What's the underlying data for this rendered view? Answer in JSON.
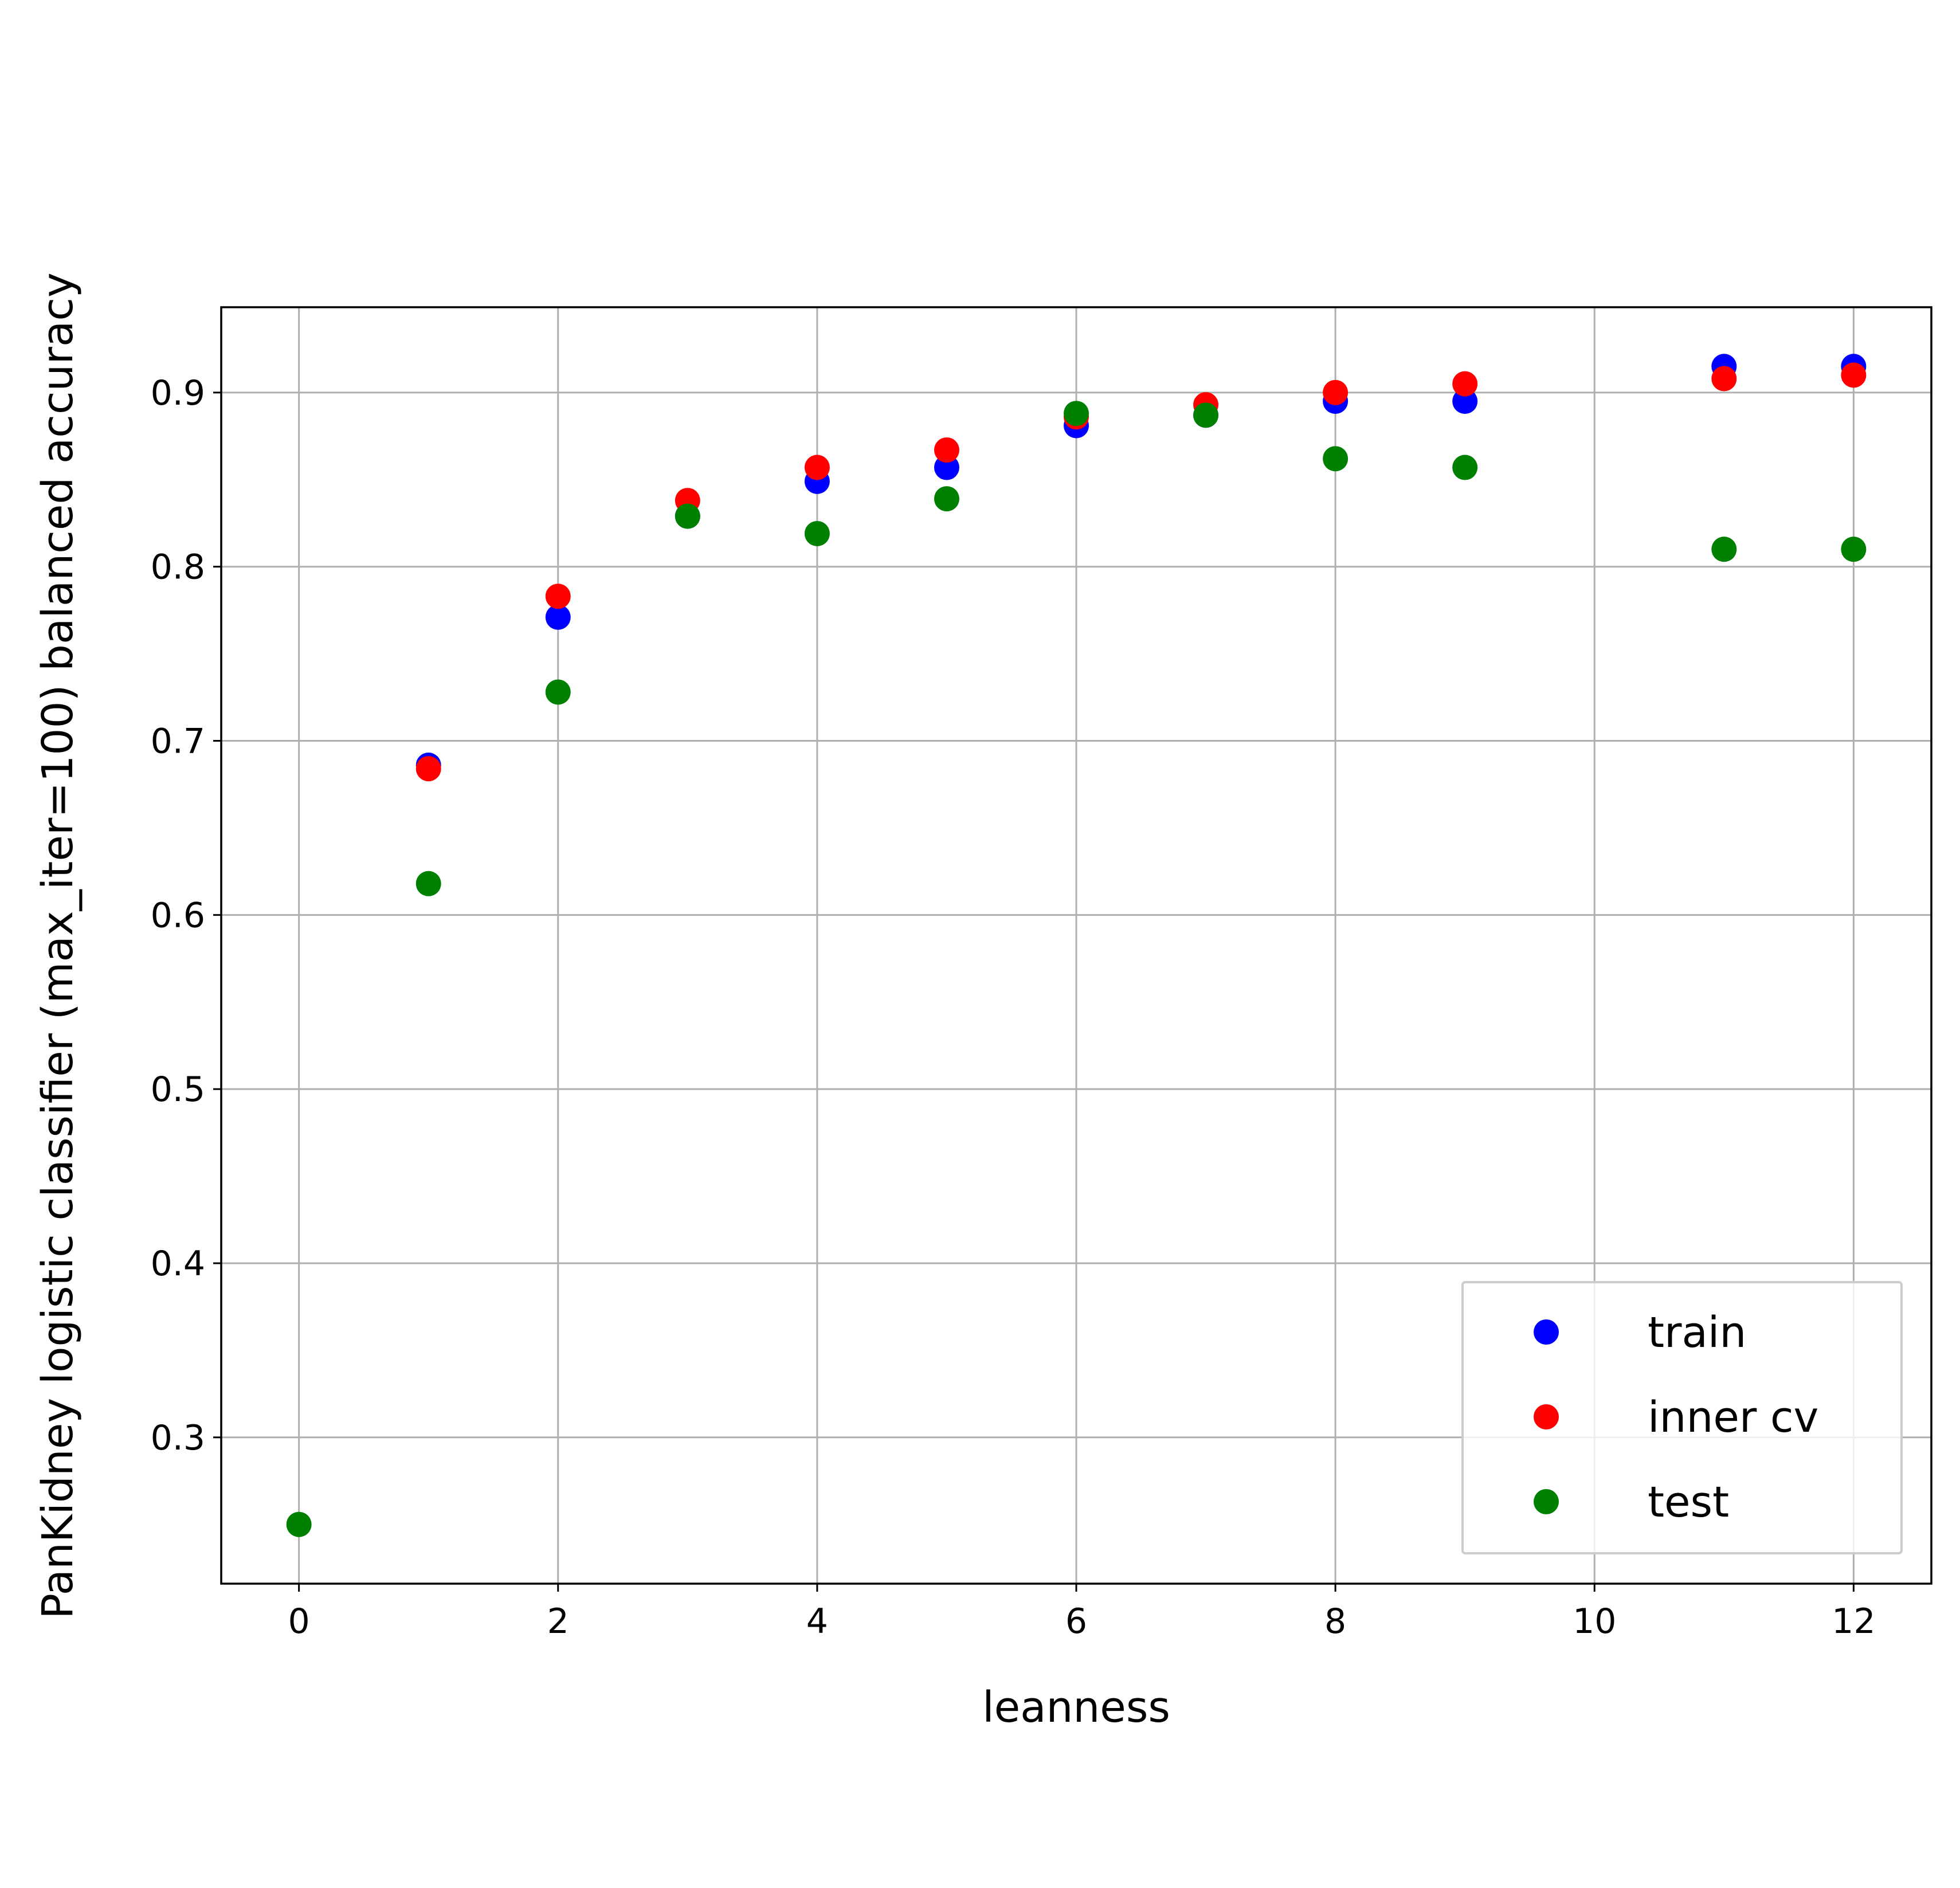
{
  "chart_data": {
    "type": "scatter",
    "title": "",
    "xlabel": "leanness",
    "ylabel": "PanKidney logistic classifier (max_iter=100) balanced accuracy",
    "xlim": [
      -0.6,
      12.6
    ],
    "ylim": [
      0.216,
      0.949
    ],
    "xticks": [
      0,
      2,
      4,
      6,
      8,
      10,
      12
    ],
    "xtick_labels": [
      "0",
      "2",
      "4",
      "6",
      "8",
      "10",
      "12"
    ],
    "yticks": [
      0.3,
      0.4,
      0.5,
      0.6,
      0.7,
      0.8,
      0.9
    ],
    "ytick_labels": [
      "0.3",
      "0.4",
      "0.5",
      "0.6",
      "0.7",
      "0.8",
      "0.9"
    ],
    "grid": true,
    "legend_position": "lower-right",
    "series": [
      {
        "name": "train",
        "color": "#0000ff",
        "x": [
          1,
          2,
          3,
          4,
          5,
          6,
          7,
          8,
          9,
          11,
          12
        ],
        "y": [
          0.686,
          0.771,
          0.829,
          0.849,
          0.857,
          0.881,
          0.887,
          0.895,
          0.895,
          0.915,
          0.915
        ]
      },
      {
        "name": "inner cv",
        "color": "#ff0000",
        "x": [
          1,
          2,
          3,
          4,
          5,
          6,
          7,
          8,
          9,
          11,
          12
        ],
        "y": [
          0.684,
          0.783,
          0.838,
          0.857,
          0.867,
          0.886,
          0.893,
          0.9,
          0.905,
          0.908,
          0.91
        ]
      },
      {
        "name": "test",
        "color": "#008000",
        "x": [
          0,
          1,
          2,
          3,
          4,
          5,
          6,
          7,
          8,
          9,
          11,
          12
        ],
        "y": [
          0.25,
          0.618,
          0.728,
          0.829,
          0.819,
          0.839,
          0.888,
          0.887,
          0.862,
          0.857,
          0.81,
          0.81
        ]
      }
    ]
  }
}
